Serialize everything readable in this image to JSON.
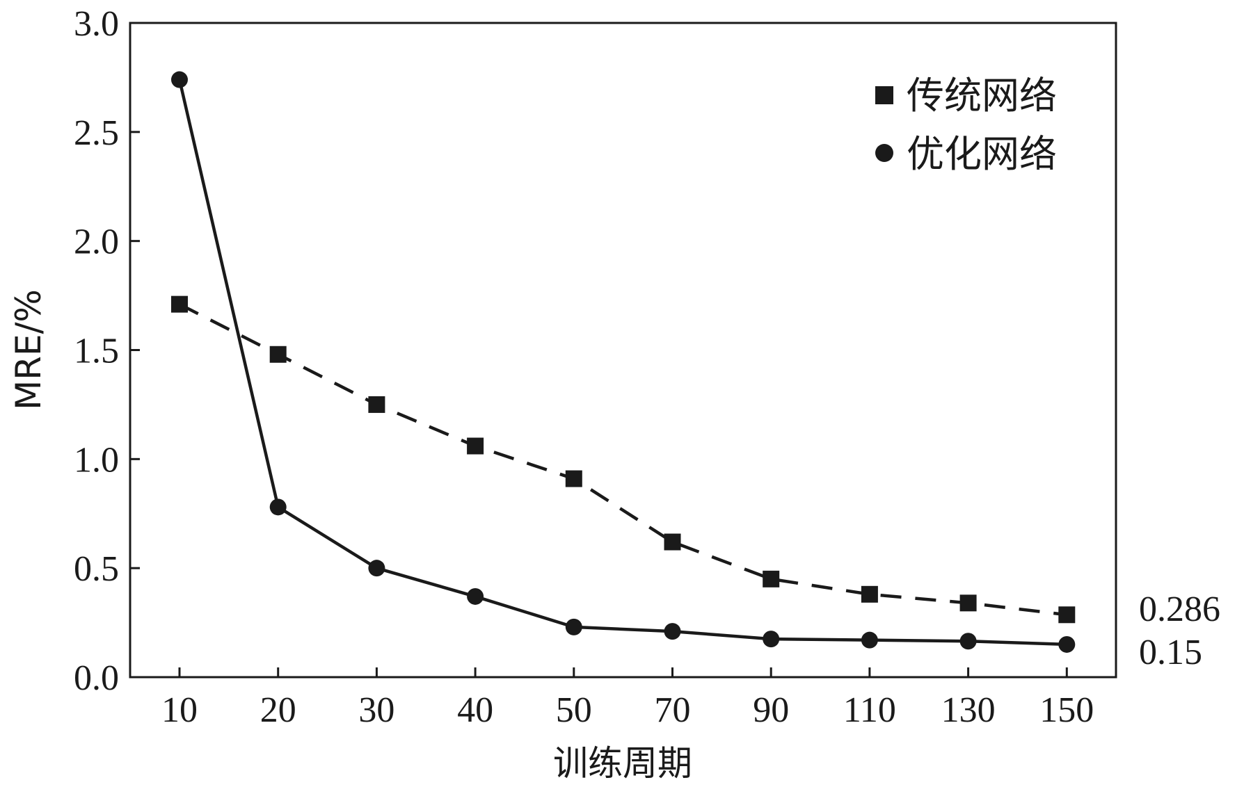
{
  "chart_data": {
    "type": "line",
    "title": "",
    "xlabel": "训练周期",
    "ylabel": "MRE/%",
    "categories": [
      "10",
      "20",
      "30",
      "40",
      "50",
      "70",
      "90",
      "110",
      "130",
      "150"
    ],
    "ylim": [
      0,
      3.0
    ],
    "yticks": [
      "0.0",
      "0.5",
      "1.0",
      "1.5",
      "2.0",
      "2.5",
      "3.0"
    ],
    "grid": false,
    "legend_position": "top-right",
    "series": [
      {
        "name": "传统网络",
        "marker": "square",
        "line_style": "dashed",
        "values": [
          1.71,
          1.48,
          1.25,
          1.06,
          0.91,
          0.62,
          0.45,
          0.38,
          0.34,
          0.286
        ]
      },
      {
        "name": "优化网络",
        "marker": "circle",
        "line_style": "solid",
        "values": [
          2.74,
          0.78,
          0.5,
          0.37,
          0.23,
          0.21,
          0.175,
          0.17,
          0.165,
          0.15
        ]
      }
    ],
    "annotations": [
      "0.286",
      "0.15"
    ],
    "colors": {
      "line": "#1a1a1a",
      "axis": "#1a1a1a",
      "background": "#ffffff"
    }
  }
}
